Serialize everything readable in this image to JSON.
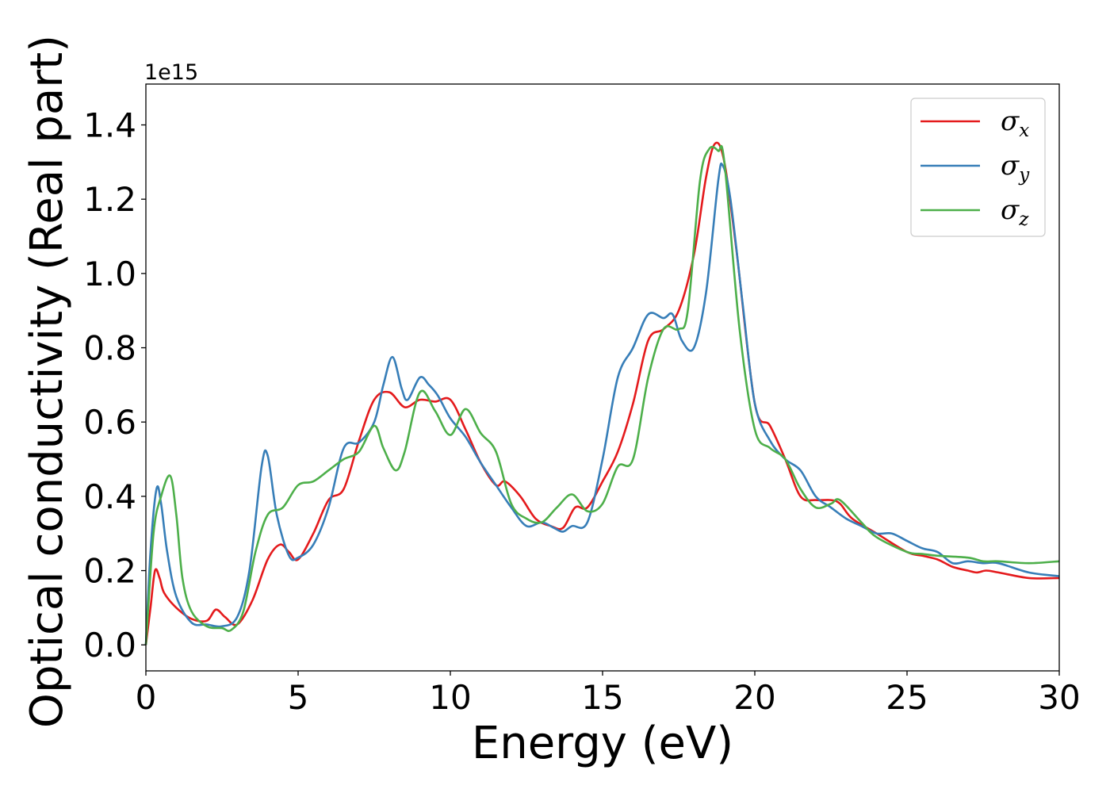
{
  "chart_data": {
    "type": "line",
    "title": "",
    "xlabel": "Energy (eV)",
    "ylabel": "Optical conductivity (Real part)",
    "y_offset_label": "1e15",
    "xlim": [
      0,
      30
    ],
    "ylim": [
      -0.07,
      1.51
    ],
    "xticks": [
      0,
      5,
      10,
      15,
      20,
      25,
      30
    ],
    "xtick_labels": [
      "0",
      "5",
      "10",
      "15",
      "20",
      "25",
      "30"
    ],
    "yticks": [
      0.0,
      0.2,
      0.4,
      0.6,
      0.8,
      1.0,
      1.2,
      1.4
    ],
    "ytick_labels": [
      "0.0",
      "0.2",
      "0.4",
      "0.6",
      "0.8",
      "1.0",
      "1.2",
      "1.4"
    ],
    "grid": false,
    "legend_position": "top-right",
    "series": [
      {
        "name": "σx",
        "symbol": "σ",
        "subscript": "x",
        "color": "#e41a1c",
        "points": [
          [
            0,
            0.0
          ],
          [
            0.15,
            0.1
          ],
          [
            0.3,
            0.2
          ],
          [
            0.45,
            0.18
          ],
          [
            0.6,
            0.14
          ],
          [
            1.0,
            0.1
          ],
          [
            1.5,
            0.07
          ],
          [
            2.0,
            0.065
          ],
          [
            2.3,
            0.095
          ],
          [
            2.6,
            0.075
          ],
          [
            3.0,
            0.055
          ],
          [
            3.5,
            0.12
          ],
          [
            4.0,
            0.23
          ],
          [
            4.4,
            0.27
          ],
          [
            4.7,
            0.25
          ],
          [
            5.0,
            0.23
          ],
          [
            5.5,
            0.3
          ],
          [
            6.0,
            0.39
          ],
          [
            6.5,
            0.42
          ],
          [
            7.0,
            0.55
          ],
          [
            7.5,
            0.66
          ],
          [
            8.0,
            0.68
          ],
          [
            8.5,
            0.64
          ],
          [
            9.0,
            0.66
          ],
          [
            9.5,
            0.655
          ],
          [
            10.0,
            0.66
          ],
          [
            10.5,
            0.58
          ],
          [
            11.0,
            0.49
          ],
          [
            11.5,
            0.43
          ],
          [
            11.8,
            0.44
          ],
          [
            12.3,
            0.4
          ],
          [
            12.8,
            0.34
          ],
          [
            13.3,
            0.32
          ],
          [
            13.7,
            0.315
          ],
          [
            14.1,
            0.37
          ],
          [
            14.5,
            0.37
          ],
          [
            15.0,
            0.44
          ],
          [
            15.5,
            0.52
          ],
          [
            16.0,
            0.65
          ],
          [
            16.5,
            0.82
          ],
          [
            17.0,
            0.85
          ],
          [
            17.5,
            0.9
          ],
          [
            18.0,
            1.05
          ],
          [
            18.4,
            1.26
          ],
          [
            18.7,
            1.35
          ],
          [
            19.0,
            1.3
          ],
          [
            19.4,
            1.06
          ],
          [
            20.0,
            0.65
          ],
          [
            20.5,
            0.59
          ],
          [
            21.0,
            0.5
          ],
          [
            21.5,
            0.4
          ],
          [
            22.0,
            0.39
          ],
          [
            22.5,
            0.39
          ],
          [
            22.8,
            0.38
          ],
          [
            23.2,
            0.34
          ],
          [
            24.0,
            0.3
          ],
          [
            25.0,
            0.25
          ],
          [
            25.5,
            0.24
          ],
          [
            26.0,
            0.23
          ],
          [
            26.5,
            0.21
          ],
          [
            27.0,
            0.2
          ],
          [
            27.3,
            0.195
          ],
          [
            27.6,
            0.2
          ],
          [
            28.0,
            0.195
          ],
          [
            29.0,
            0.18
          ],
          [
            30.0,
            0.18
          ]
        ]
      },
      {
        "name": "σy",
        "symbol": "σ",
        "subscript": "y",
        "color": "#377eb8",
        "points": [
          [
            0,
            0.0
          ],
          [
            0.15,
            0.25
          ],
          [
            0.35,
            0.42
          ],
          [
            0.5,
            0.38
          ],
          [
            0.7,
            0.25
          ],
          [
            1.0,
            0.13
          ],
          [
            1.5,
            0.06
          ],
          [
            2.0,
            0.055
          ],
          [
            2.5,
            0.05
          ],
          [
            3.0,
            0.075
          ],
          [
            3.4,
            0.2
          ],
          [
            3.8,
            0.48
          ],
          [
            4.0,
            0.51
          ],
          [
            4.3,
            0.35
          ],
          [
            4.7,
            0.24
          ],
          [
            5.0,
            0.235
          ],
          [
            5.5,
            0.27
          ],
          [
            6.0,
            0.37
          ],
          [
            6.5,
            0.53
          ],
          [
            7.0,
            0.545
          ],
          [
            7.5,
            0.6
          ],
          [
            7.8,
            0.7
          ],
          [
            8.1,
            0.775
          ],
          [
            8.4,
            0.69
          ],
          [
            8.6,
            0.66
          ],
          [
            9.0,
            0.72
          ],
          [
            9.3,
            0.7
          ],
          [
            9.6,
            0.67
          ],
          [
            10.0,
            0.61
          ],
          [
            10.5,
            0.56
          ],
          [
            11.0,
            0.49
          ],
          [
            11.5,
            0.43
          ],
          [
            12.0,
            0.37
          ],
          [
            12.5,
            0.32
          ],
          [
            13.0,
            0.33
          ],
          [
            13.4,
            0.315
          ],
          [
            13.7,
            0.305
          ],
          [
            14.0,
            0.32
          ],
          [
            14.5,
            0.33
          ],
          [
            15.0,
            0.5
          ],
          [
            15.5,
            0.72
          ],
          [
            16.0,
            0.8
          ],
          [
            16.5,
            0.89
          ],
          [
            17.0,
            0.88
          ],
          [
            17.3,
            0.89
          ],
          [
            17.6,
            0.82
          ],
          [
            18.0,
            0.8
          ],
          [
            18.4,
            0.95
          ],
          [
            18.8,
            1.25
          ],
          [
            18.95,
            1.29
          ],
          [
            19.2,
            1.2
          ],
          [
            19.6,
            0.92
          ],
          [
            20.0,
            0.65
          ],
          [
            20.5,
            0.55
          ],
          [
            21.0,
            0.5
          ],
          [
            21.5,
            0.47
          ],
          [
            22.0,
            0.4
          ],
          [
            22.5,
            0.37
          ],
          [
            23.0,
            0.34
          ],
          [
            23.5,
            0.32
          ],
          [
            24.0,
            0.3
          ],
          [
            24.5,
            0.3
          ],
          [
            25.0,
            0.28
          ],
          [
            25.5,
            0.26
          ],
          [
            26.0,
            0.25
          ],
          [
            26.5,
            0.22
          ],
          [
            27.0,
            0.225
          ],
          [
            27.5,
            0.22
          ],
          [
            28.0,
            0.22
          ],
          [
            29.0,
            0.195
          ],
          [
            30.0,
            0.185
          ]
        ]
      },
      {
        "name": "σz",
        "symbol": "σ",
        "subscript": "z",
        "color": "#4daf4a",
        "points": [
          [
            0,
            0.0
          ],
          [
            0.25,
            0.3
          ],
          [
            0.5,
            0.4
          ],
          [
            0.8,
            0.455
          ],
          [
            1.0,
            0.35
          ],
          [
            1.2,
            0.18
          ],
          [
            1.5,
            0.09
          ],
          [
            2.0,
            0.05
          ],
          [
            2.5,
            0.045
          ],
          [
            2.8,
            0.04
          ],
          [
            3.2,
            0.09
          ],
          [
            3.6,
            0.25
          ],
          [
            4.0,
            0.35
          ],
          [
            4.5,
            0.37
          ],
          [
            5.0,
            0.43
          ],
          [
            5.5,
            0.44
          ],
          [
            6.0,
            0.47
          ],
          [
            6.5,
            0.5
          ],
          [
            7.0,
            0.52
          ],
          [
            7.5,
            0.59
          ],
          [
            7.8,
            0.53
          ],
          [
            8.2,
            0.47
          ],
          [
            8.5,
            0.52
          ],
          [
            9.0,
            0.68
          ],
          [
            9.5,
            0.63
          ],
          [
            10.0,
            0.565
          ],
          [
            10.5,
            0.635
          ],
          [
            11.0,
            0.57
          ],
          [
            11.5,
            0.52
          ],
          [
            12.0,
            0.38
          ],
          [
            12.5,
            0.34
          ],
          [
            13.0,
            0.33
          ],
          [
            13.5,
            0.37
          ],
          [
            14.0,
            0.405
          ],
          [
            14.5,
            0.36
          ],
          [
            15.0,
            0.38
          ],
          [
            15.5,
            0.48
          ],
          [
            16.0,
            0.5
          ],
          [
            16.5,
            0.72
          ],
          [
            17.0,
            0.85
          ],
          [
            17.5,
            0.85
          ],
          [
            17.8,
            0.9
          ],
          [
            18.2,
            1.25
          ],
          [
            18.5,
            1.335
          ],
          [
            18.8,
            1.33
          ],
          [
            19.0,
            1.3
          ],
          [
            19.5,
            0.85
          ],
          [
            20.0,
            0.58
          ],
          [
            20.5,
            0.53
          ],
          [
            21.0,
            0.5
          ],
          [
            21.5,
            0.42
          ],
          [
            22.0,
            0.37
          ],
          [
            22.5,
            0.38
          ],
          [
            22.8,
            0.39
          ],
          [
            23.5,
            0.33
          ],
          [
            24.0,
            0.29
          ],
          [
            25.0,
            0.25
          ],
          [
            25.5,
            0.245
          ],
          [
            26.0,
            0.24
          ],
          [
            27.0,
            0.235
          ],
          [
            27.5,
            0.225
          ],
          [
            28.0,
            0.225
          ],
          [
            29.0,
            0.22
          ],
          [
            30.0,
            0.225
          ]
        ]
      }
    ]
  }
}
